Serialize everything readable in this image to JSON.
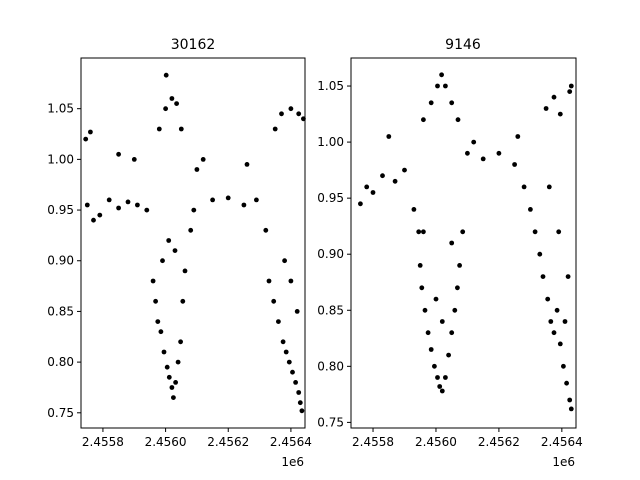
{
  "chart_data": [
    {
      "type": "scatter",
      "title": "30162",
      "xlabel": "",
      "ylabel": "",
      "x_offset_label": "1e6",
      "xlim": [
        2455730,
        2456445
      ],
      "ylim": [
        0.735,
        1.1
      ],
      "xticks": [
        2455800,
        2456000,
        2456200,
        2456400
      ],
      "xtick_labels": [
        "2.4558",
        "2.4560",
        "2.4562",
        "2.4564"
      ],
      "yticks": [
        0.75,
        0.8,
        0.85,
        0.9,
        0.95,
        1.0,
        1.05
      ],
      "ytick_labels": [
        "0.75",
        "0.80",
        "0.85",
        "0.90",
        "0.95",
        "1.00",
        "1.05"
      ],
      "grid": false,
      "marker_color": "#000000",
      "series": [
        {
          "points": [
            [
              2455745,
              1.02
            ],
            [
              2455760,
              1.027
            ],
            [
              2455750,
              0.955
            ],
            [
              2455770,
              0.94
            ],
            [
              2455790,
              0.945
            ],
            [
              2455820,
              0.96
            ],
            [
              2455850,
              0.952
            ],
            [
              2455880,
              0.958
            ],
            [
              2455910,
              0.955
            ],
            [
              2455940,
              0.95
            ],
            [
              2455960,
              0.88
            ],
            [
              2455968,
              0.86
            ],
            [
              2455975,
              0.84
            ],
            [
              2455985,
              0.83
            ],
            [
              2455995,
              0.81
            ],
            [
              2456005,
              0.795
            ],
            [
              2456012,
              0.785
            ],
            [
              2456020,
              0.775
            ],
            [
              2456025,
              0.765
            ],
            [
              2456032,
              0.78
            ],
            [
              2456040,
              0.8
            ],
            [
              2456048,
              0.82
            ],
            [
              2456055,
              0.86
            ],
            [
              2456062,
              0.89
            ],
            [
              2455990,
              0.9
            ],
            [
              2456010,
              0.92
            ],
            [
              2456030,
              0.91
            ],
            [
              2455980,
              1.03
            ],
            [
              2456000,
              1.05
            ],
            [
              2456020,
              1.06
            ],
            [
              2456035,
              1.055
            ],
            [
              2456050,
              1.03
            ],
            [
              2456002,
              1.083
            ],
            [
              2456080,
              0.93
            ],
            [
              2456090,
              0.95
            ],
            [
              2456150,
              0.96
            ],
            [
              2456200,
              0.962
            ],
            [
              2456250,
              0.955
            ],
            [
              2456290,
              0.96
            ],
            [
              2456320,
              0.93
            ],
            [
              2456330,
              0.88
            ],
            [
              2456345,
              0.86
            ],
            [
              2456360,
              0.84
            ],
            [
              2456375,
              0.82
            ],
            [
              2456385,
              0.81
            ],
            [
              2456395,
              0.8
            ],
            [
              2456405,
              0.79
            ],
            [
              2456415,
              0.78
            ],
            [
              2456425,
              0.77
            ],
            [
              2456430,
              0.76
            ],
            [
              2456435,
              0.752
            ],
            [
              2456420,
              0.85
            ],
            [
              2456400,
              0.88
            ],
            [
              2456380,
              0.9
            ],
            [
              2456350,
              1.03
            ],
            [
              2456370,
              1.045
            ],
            [
              2456400,
              1.05
            ],
            [
              2456425,
              1.045
            ],
            [
              2456440,
              1.04
            ],
            [
              2456100,
              0.99
            ],
            [
              2456120,
              1.0
            ],
            [
              2455850,
              1.005
            ],
            [
              2455900,
              1.0
            ],
            [
              2456260,
              0.995
            ]
          ]
        }
      ]
    },
    {
      "type": "scatter",
      "title": "9146",
      "xlabel": "",
      "ylabel": "",
      "x_offset_label": "1e6",
      "xlim": [
        2455730,
        2456445
      ],
      "ylim": [
        0.745,
        1.075
      ],
      "xticks": [
        2455800,
        2456000,
        2456200,
        2456400
      ],
      "xtick_labels": [
        "2.4558",
        "2.4560",
        "2.4562",
        "2.4564"
      ],
      "yticks": [
        0.75,
        0.8,
        0.85,
        0.9,
        0.95,
        1.0,
        1.05
      ],
      "ytick_labels": [
        "0.75",
        "0.80",
        "0.85",
        "0.90",
        "0.95",
        "1.00",
        "1.05"
      ],
      "grid": false,
      "marker_color": "#000000",
      "series": [
        {
          "points": [
            [
              2455760,
              0.945
            ],
            [
              2455780,
              0.96
            ],
            [
              2455800,
              0.955
            ],
            [
              2455830,
              0.97
            ],
            [
              2455870,
              0.965
            ],
            [
              2455900,
              0.975
            ],
            [
              2455930,
              0.94
            ],
            [
              2455945,
              0.92
            ],
            [
              2455950,
              0.89
            ],
            [
              2455955,
              0.87
            ],
            [
              2455965,
              0.85
            ],
            [
              2455975,
              0.83
            ],
            [
              2455985,
              0.815
            ],
            [
              2455995,
              0.8
            ],
            [
              2456005,
              0.79
            ],
            [
              2456012,
              0.782
            ],
            [
              2456020,
              0.778
            ],
            [
              2456030,
              0.79
            ],
            [
              2456040,
              0.81
            ],
            [
              2456050,
              0.83
            ],
            [
              2456060,
              0.85
            ],
            [
              2456068,
              0.87
            ],
            [
              2456075,
              0.89
            ],
            [
              2456085,
              0.92
            ],
            [
              2456000,
              0.86
            ],
            [
              2456020,
              0.84
            ],
            [
              2455960,
              0.92
            ],
            [
              2456050,
              0.91
            ],
            [
              2455960,
              1.02
            ],
            [
              2455985,
              1.035
            ],
            [
              2456005,
              1.05
            ],
            [
              2456018,
              1.06
            ],
            [
              2456030,
              1.05
            ],
            [
              2456050,
              1.035
            ],
            [
              2456070,
              1.02
            ],
            [
              2456100,
              0.99
            ],
            [
              2456150,
              0.985
            ],
            [
              2456200,
              0.99
            ],
            [
              2456250,
              0.98
            ],
            [
              2456280,
              0.96
            ],
            [
              2456300,
              0.94
            ],
            [
              2456315,
              0.92
            ],
            [
              2456330,
              0.9
            ],
            [
              2456340,
              0.88
            ],
            [
              2456355,
              0.86
            ],
            [
              2456365,
              0.84
            ],
            [
              2456375,
              0.83
            ],
            [
              2456385,
              0.85
            ],
            [
              2456395,
              0.82
            ],
            [
              2456405,
              0.8
            ],
            [
              2456415,
              0.785
            ],
            [
              2456425,
              0.77
            ],
            [
              2456430,
              0.762
            ],
            [
              2456410,
              0.84
            ],
            [
              2456420,
              0.88
            ],
            [
              2456390,
              0.92
            ],
            [
              2456360,
              0.96
            ],
            [
              2456350,
              1.03
            ],
            [
              2456375,
              1.04
            ],
            [
              2456395,
              1.025
            ],
            [
              2456425,
              1.045
            ],
            [
              2456430,
              1.05
            ],
            [
              2456120,
              1.0
            ],
            [
              2455850,
              1.005
            ],
            [
              2456260,
              1.005
            ]
          ]
        }
      ]
    }
  ]
}
